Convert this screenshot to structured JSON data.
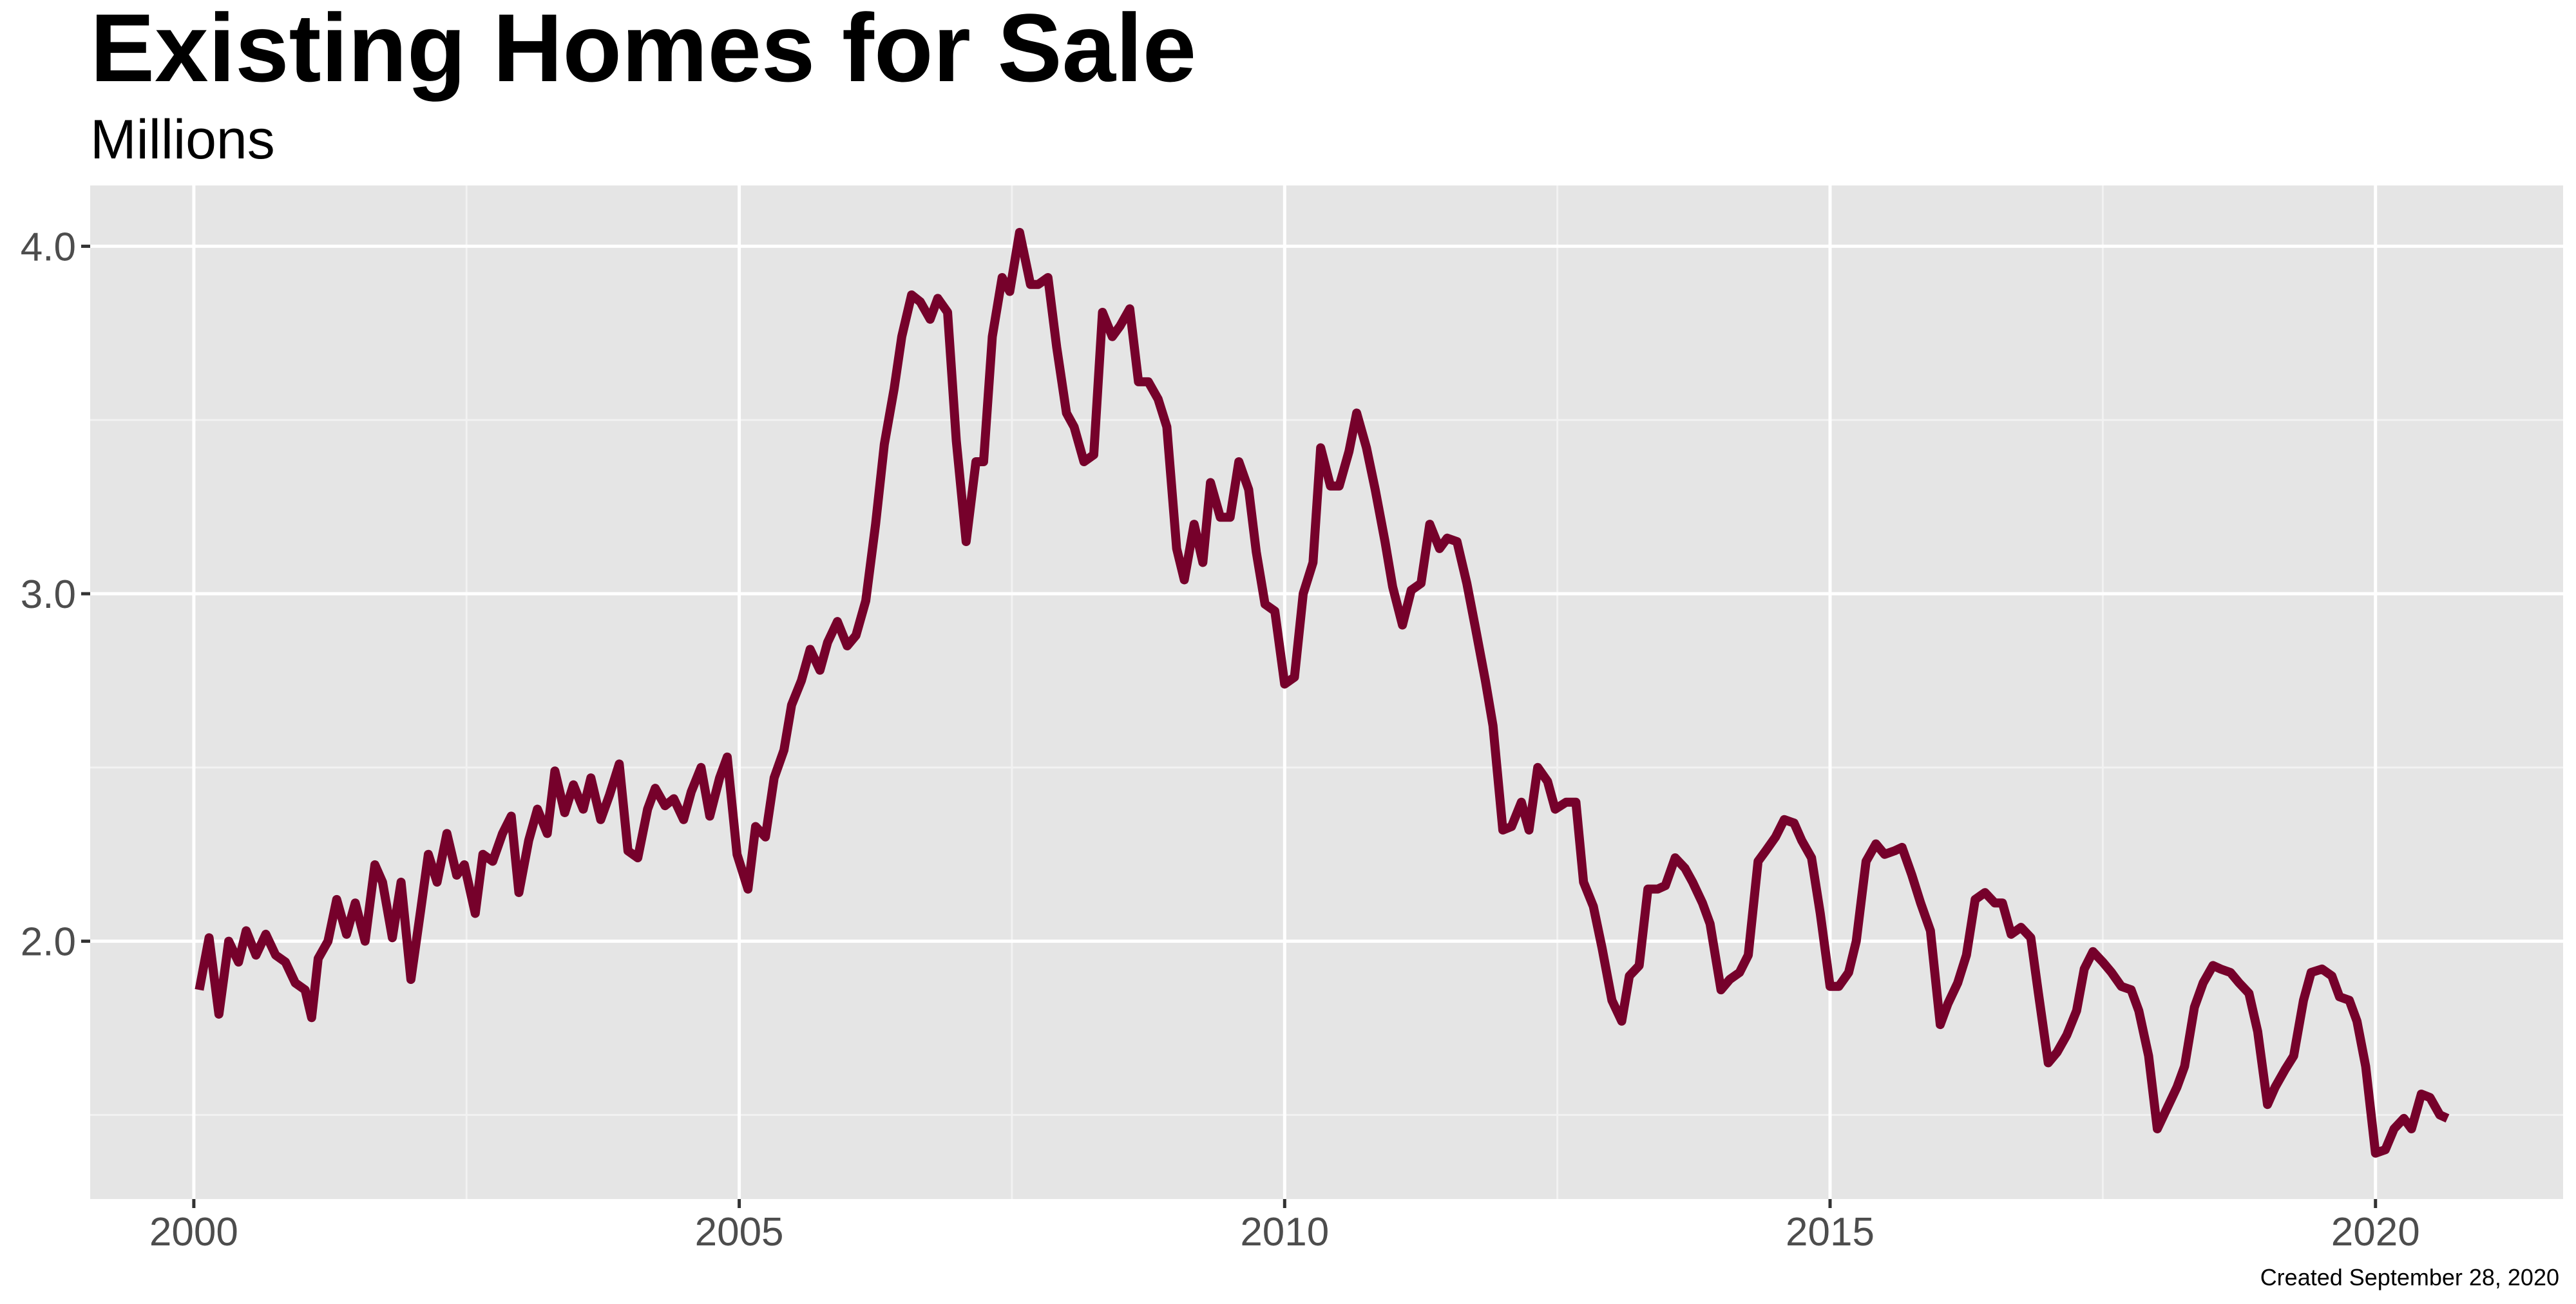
{
  "chart_data": {
    "type": "line",
    "title": "Existing Homes for Sale",
    "subtitle": "Millions",
    "caption": "Created September 28, 2020",
    "color": "#76012b",
    "grid": true,
    "xlim": [
      1999.05,
      2021.72
    ],
    "ylim": [
      1.258,
      4.175
    ],
    "xticks": [
      2000,
      2005,
      2010,
      2015,
      2020
    ],
    "yticks": [
      {
        "value": 2,
        "label": "2.0"
      },
      {
        "value": 3,
        "label": "3.0"
      },
      {
        "value": 4,
        "label": "4.0"
      }
    ],
    "x": [
      2000.05,
      2000.14,
      2000.23,
      2000.32,
      2000.41,
      2000.48,
      2000.57,
      2000.66,
      2000.75,
      2000.84,
      2000.93,
      2001.02,
      2001.08,
      2001.14,
      2001.23,
      2001.31,
      2001.4,
      2001.48,
      2001.57,
      2001.66,
      2001.73,
      2001.82,
      2001.9,
      2001.99,
      2002.08,
      2002.15,
      2002.23,
      2002.32,
      2002.41,
      2002.48,
      2002.58,
      2002.65,
      2002.74,
      2002.83,
      2002.91,
      2002.98,
      2003.07,
      2003.15,
      2003.24,
      2003.31,
      2003.4,
      2003.48,
      2003.57,
      2003.64,
      2003.73,
      2003.81,
      2003.9,
      2003.98,
      2004.07,
      2004.16,
      2004.23,
      2004.32,
      2004.4,
      2004.49,
      2004.56,
      2004.65,
      2004.73,
      2004.82,
      2004.89,
      2004.98,
      2005.08,
      2005.15,
      2005.24,
      2005.32,
      2005.41,
      2005.48,
      2005.57,
      2005.65,
      2005.74,
      2005.81,
      2005.9,
      2005.99,
      2006.07,
      2006.16,
      2006.25,
      2006.33,
      2006.42,
      2006.49,
      2006.58,
      2006.66,
      2006.75,
      2006.82,
      2006.91,
      2006.99,
      2007.08,
      2007.17,
      2007.24,
      2007.32,
      2007.41,
      2007.48,
      2007.57,
      2007.67,
      2007.74,
      2007.83,
      2007.91,
      2008.0,
      2008.07,
      2008.16,
      2008.25,
      2008.33,
      2008.42,
      2008.49,
      2008.58,
      2008.66,
      2008.75,
      2008.84,
      2008.92,
      2009.01,
      2009.08,
      2009.17,
      2009.25,
      2009.32,
      2009.41,
      2009.5,
      2009.58,
      2009.67,
      2009.74,
      2009.82,
      2009.91,
      2010.0,
      2010.09,
      2010.17,
      2010.26,
      2010.33,
      2010.42,
      2010.5,
      2010.59,
      2010.66,
      2010.75,
      2010.83,
      2010.92,
      2010.99,
      2011.08,
      2011.16,
      2011.25,
      2011.33,
      2011.42,
      2011.49,
      2011.58,
      2011.67,
      2011.75,
      2011.84,
      2011.91,
      2012.0,
      2012.08,
      2012.17,
      2012.24,
      2012.32,
      2012.41,
      2012.48,
      2012.58,
      2012.67,
      2012.74,
      2012.83,
      2012.91,
      2013.0,
      2013.09,
      2013.16,
      2013.25,
      2013.33,
      2013.42,
      2013.49,
      2013.58,
      2013.67,
      2013.74,
      2013.83,
      2013.9,
      2014.0,
      2014.08,
      2014.17,
      2014.25,
      2014.34,
      2014.41,
      2014.5,
      2014.58,
      2014.67,
      2014.74,
      2014.83,
      2014.91,
      2015.0,
      2015.08,
      2015.17,
      2015.24,
      2015.33,
      2015.42,
      2015.5,
      2015.59,
      2015.66,
      2015.75,
      2015.83,
      2015.92,
      2016.01,
      2016.08,
      2016.17,
      2016.25,
      2016.33,
      2016.42,
      2016.51,
      2016.58,
      2016.66,
      2016.75,
      2016.84,
      2016.91,
      2017.0,
      2017.08,
      2017.17,
      2017.26,
      2017.33,
      2017.41,
      2017.5,
      2017.58,
      2017.67,
      2017.76,
      2017.83,
      2017.92,
      2018.0,
      2018.09,
      2018.18,
      2018.25,
      2018.34,
      2018.42,
      2018.51,
      2018.58,
      2018.67,
      2018.75,
      2018.84,
      2018.92,
      2019.01,
      2019.08,
      2019.17,
      2019.25,
      2019.34,
      2019.41,
      2019.51,
      2019.6,
      2019.67,
      2019.76,
      2019.83,
      2019.91,
      2020.0,
      2020.09,
      2020.17,
      2020.26,
      2020.33,
      2020.42,
      2020.5,
      2020.59,
      2020.66
    ],
    "values": [
      1.86,
      2.01,
      1.79,
      2.0,
      1.94,
      2.03,
      1.96,
      2.02,
      1.96,
      1.94,
      1.88,
      1.86,
      1.78,
      1.95,
      2.0,
      2.12,
      2.02,
      2.11,
      2.0,
      2.22,
      2.17,
      2.01,
      2.17,
      1.89,
      2.09,
      2.25,
      2.17,
      2.31,
      2.19,
      2.22,
      2.08,
      2.25,
      2.23,
      2.31,
      2.36,
      2.14,
      2.29,
      2.38,
      2.31,
      2.49,
      2.37,
      2.45,
      2.38,
      2.47,
      2.35,
      2.42,
      2.51,
      2.26,
      2.24,
      2.38,
      2.44,
      2.39,
      2.41,
      2.35,
      2.43,
      2.5,
      2.36,
      2.47,
      2.53,
      2.25,
      2.15,
      2.33,
      2.3,
      2.47,
      2.55,
      2.68,
      2.75,
      2.84,
      2.78,
      2.86,
      2.92,
      2.85,
      2.88,
      2.98,
      3.2,
      3.43,
      3.59,
      3.74,
      3.86,
      3.84,
      3.79,
      3.85,
      3.81,
      3.44,
      3.15,
      3.38,
      3.38,
      3.74,
      3.91,
      3.87,
      4.04,
      3.89,
      3.89,
      3.91,
      3.71,
      3.52,
      3.48,
      3.38,
      3.4,
      3.81,
      3.74,
      3.77,
      3.82,
      3.61,
      3.61,
      3.56,
      3.48,
      3.13,
      3.04,
      3.2,
      3.09,
      3.32,
      3.22,
      3.22,
      3.38,
      3.3,
      3.12,
      2.97,
      2.95,
      2.74,
      2.76,
      3.0,
      3.09,
      3.42,
      3.31,
      3.31,
      3.41,
      3.52,
      3.42,
      3.3,
      3.15,
      3.02,
      2.91,
      3.01,
      3.03,
      3.2,
      3.13,
      3.16,
      3.15,
      3.03,
      2.9,
      2.75,
      2.62,
      2.32,
      2.33,
      2.4,
      2.32,
      2.5,
      2.46,
      2.38,
      2.4,
      2.4,
      2.17,
      2.1,
      1.98,
      1.83,
      1.77,
      1.9,
      1.93,
      2.15,
      2.15,
      2.16,
      2.24,
      2.21,
      2.17,
      2.11,
      2.05,
      1.86,
      1.89,
      1.91,
      1.96,
      2.23,
      2.26,
      2.3,
      2.35,
      2.34,
      2.29,
      2.24,
      2.08,
      1.87,
      1.87,
      1.91,
      2.0,
      2.23,
      2.28,
      2.25,
      2.26,
      2.27,
      2.19,
      2.11,
      2.03,
      1.76,
      1.82,
      1.88,
      1.96,
      2.12,
      2.14,
      2.11,
      2.11,
      2.02,
      2.04,
      2.01,
      1.85,
      1.65,
      1.68,
      1.73,
      1.8,
      1.92,
      1.97,
      1.94,
      1.91,
      1.87,
      1.86,
      1.8,
      1.67,
      1.46,
      1.52,
      1.58,
      1.64,
      1.81,
      1.88,
      1.93,
      1.92,
      1.91,
      1.88,
      1.85,
      1.74,
      1.53,
      1.58,
      1.63,
      1.67,
      1.83,
      1.91,
      1.92,
      1.9,
      1.84,
      1.83,
      1.77,
      1.64,
      1.39,
      1.4,
      1.46,
      1.49,
      1.46,
      1.56,
      1.55,
      1.5,
      1.49
    ]
  }
}
